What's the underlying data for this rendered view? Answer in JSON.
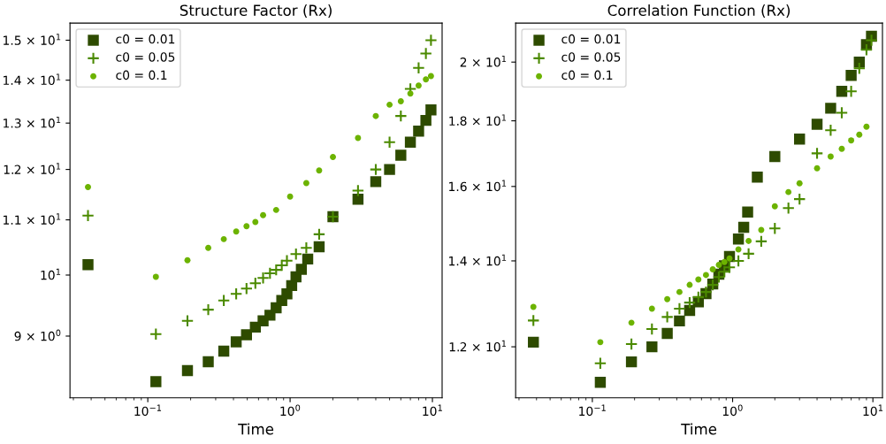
{
  "chart_data": [
    {
      "type": "scatter",
      "title": "Structure Factor (Rx)",
      "xlabel": "Time",
      "log": "xy",
      "grid": false,
      "legend": "top left",
      "xlim": [
        0.0284,
        11.7
      ],
      "xticks": [
        {
          "value": 0.1,
          "label": "10$^{−1}$"
        },
        {
          "value": 1,
          "label": "10$^{0}$"
        },
        {
          "value": 10,
          "label": "10$^{1}$"
        }
      ],
      "ylim": [
        8.09,
        15.45
      ],
      "yticks": [
        {
          "value": 9,
          "label": "9 × 10$^{0}$"
        },
        {
          "value": 10,
          "label": "10$^{1}$"
        },
        {
          "value": 11,
          "label": "1.1 × 10$^{1}$"
        },
        {
          "value": 12,
          "label": "1.2 × 10$^{1}$"
        },
        {
          "value": 13,
          "label": "1.3 × 10$^{1}$"
        },
        {
          "value": 14,
          "label": "1.4 × 10$^{1}$"
        },
        {
          "value": 15,
          "label": "1.5 × 10$^{1}$"
        }
      ],
      "series": [
        {
          "name": "c0 = 0.01",
          "color": "#2e4b00",
          "marker": "square",
          "x": [
            0.038,
            0.114,
            0.19,
            0.266,
            0.342,
            0.418,
            0.494,
            0.57,
            0.646,
            0.722,
            0.798,
            0.874,
            0.95,
            1.026,
            1.1,
            1.2,
            1.33,
            1.6,
            2,
            3,
            4,
            5,
            6,
            7,
            8,
            9,
            9.77
          ],
          "values": [
            10.18,
            8.32,
            8.48,
            8.61,
            8.77,
            8.91,
            9.02,
            9.14,
            9.24,
            9.33,
            9.45,
            9.57,
            9.68,
            9.82,
            9.97,
            10.1,
            10.28,
            10.5,
            11.06,
            11.4,
            11.75,
            12.0,
            12.3,
            12.58,
            12.82,
            13.06,
            13.3
          ]
        },
        {
          "name": "c0 = 0.05",
          "color": "#4b8a00",
          "marker": "cross",
          "x": [
            0.038,
            0.114,
            0.19,
            0.266,
            0.342,
            0.418,
            0.494,
            0.57,
            0.646,
            0.722,
            0.798,
            0.874,
            0.95,
            1.1,
            1.3,
            1.6,
            2,
            3,
            4,
            5,
            6,
            7,
            8,
            9,
            9.77
          ],
          "values": [
            11.08,
            9.03,
            9.24,
            9.42,
            9.57,
            9.68,
            9.77,
            9.86,
            9.95,
            10.03,
            10.09,
            10.17,
            10.25,
            10.37,
            10.48,
            10.73,
            11.06,
            11.57,
            12.0,
            12.58,
            13.16,
            13.79,
            14.3,
            14.66,
            15.0
          ]
        },
        {
          "name": "c0 = 0.1",
          "color": "#6cb300",
          "marker": "circle",
          "x": [
            0.038,
            0.114,
            0.19,
            0.266,
            0.342,
            0.418,
            0.494,
            0.57,
            0.646,
            0.798,
            1.0,
            1.3,
            1.6,
            2,
            3,
            4,
            5,
            6,
            7,
            8,
            9,
            9.77
          ],
          "values": [
            11.64,
            9.97,
            10.26,
            10.48,
            10.64,
            10.78,
            10.88,
            10.96,
            11.09,
            11.19,
            11.45,
            11.72,
            11.98,
            12.26,
            12.67,
            13.16,
            13.42,
            13.5,
            13.68,
            13.87,
            14.02,
            14.1
          ]
        }
      ]
    },
    {
      "type": "scatter",
      "title": "Correlation Function (Rx)",
      "xlabel": "Time",
      "log": "xy",
      "grid": false,
      "legend": "top left",
      "xlim": [
        0.0284,
        11.7
      ],
      "xticks": [
        {
          "value": 0.1,
          "label": "10$^{−1}$"
        },
        {
          "value": 1,
          "label": "10$^{0}$"
        },
        {
          "value": 10,
          "label": "10$^{1}$"
        }
      ],
      "ylim": [
        10.95,
        21.45
      ],
      "yticks": [
        {
          "value": 12,
          "label": "1.2 × 10$^{1}$"
        },
        {
          "value": 14,
          "label": "1.4 × 10$^{1}$"
        },
        {
          "value": 16,
          "label": "1.6 × 10$^{1}$"
        },
        {
          "value": 18,
          "label": "1.8 × 10$^{1}$"
        },
        {
          "value": 20,
          "label": "2 × 10$^{1}$"
        }
      ],
      "series": [
        {
          "name": "c0 = 0.01",
          "color": "#2e4b00",
          "marker": "square",
          "x": [
            0.038,
            0.114,
            0.19,
            0.266,
            0.342,
            0.418,
            0.494,
            0.57,
            0.646,
            0.722,
            0.798,
            0.874,
            0.95,
            1.1,
            1.2,
            1.28,
            1.5,
            2,
            3,
            4,
            5,
            6,
            7,
            8,
            9,
            9.77
          ],
          "values": [
            12.1,
            11.26,
            11.68,
            12.0,
            12.29,
            12.57,
            12.81,
            13.01,
            13.2,
            13.43,
            13.67,
            13.88,
            14.11,
            14.56,
            14.87,
            15.28,
            16.27,
            16.88,
            17.42,
            17.89,
            18.41,
            18.98,
            19.53,
            20.0,
            20.64,
            20.95
          ]
        },
        {
          "name": "c0 = 0.05",
          "color": "#4b8a00",
          "marker": "cross",
          "x": [
            0.038,
            0.114,
            0.19,
            0.266,
            0.342,
            0.418,
            0.494,
            0.57,
            0.646,
            0.722,
            0.798,
            0.874,
            0.95,
            1.1,
            1.3,
            1.6,
            2,
            2.5,
            3,
            4,
            5,
            6,
            7,
            8,
            9,
            9.77
          ],
          "values": [
            12.58,
            11.65,
            12.06,
            12.39,
            12.66,
            12.85,
            12.99,
            13.12,
            13.24,
            13.41,
            13.6,
            13.73,
            13.84,
            14.0,
            14.18,
            14.5,
            14.84,
            15.39,
            15.64,
            16.98,
            17.7,
            18.26,
            18.98,
            19.78,
            20.45,
            20.8
          ]
        },
        {
          "name": "c0 = 0.1",
          "color": "#6cb300",
          "marker": "circle",
          "x": [
            0.038,
            0.114,
            0.19,
            0.266,
            0.342,
            0.418,
            0.494,
            0.57,
            0.646,
            0.722,
            0.798,
            0.874,
            0.95,
            1.1,
            1.3,
            1.6,
            2,
            2.5,
            3,
            4,
            5,
            6,
            7,
            8,
            9
          ],
          "values": [
            12.89,
            12.1,
            12.53,
            12.85,
            13.07,
            13.24,
            13.41,
            13.54,
            13.65,
            13.79,
            13.9,
            13.97,
            14.06,
            14.29,
            14.51,
            14.8,
            15.44,
            15.84,
            16.09,
            16.53,
            16.88,
            17.12,
            17.38,
            17.56,
            17.81
          ]
        }
      ]
    }
  ]
}
